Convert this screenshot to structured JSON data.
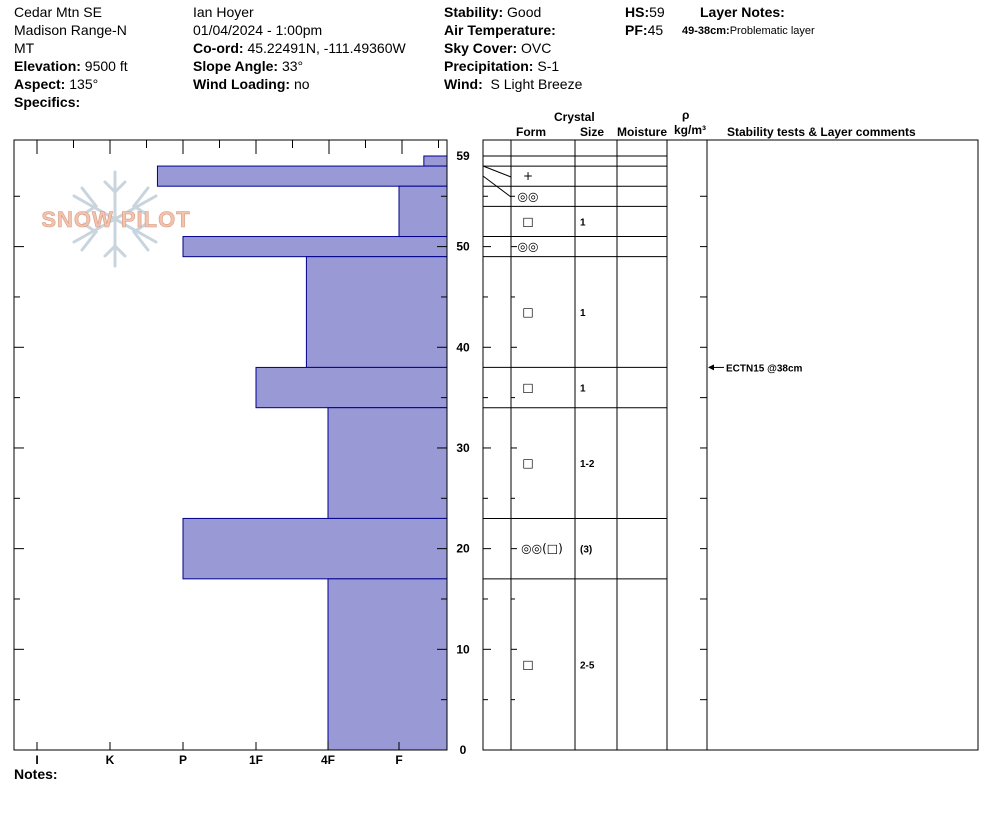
{
  "header": {
    "col1": {
      "location": "Cedar Mtn SE",
      "range": "Madison Range-N",
      "state": "MT",
      "elevation_label": "Elevation:",
      "elevation": "9500 ft",
      "aspect_label": "Aspect:",
      "aspect": "135°",
      "specifics_label": "Specifics:"
    },
    "col2": {
      "observer": "Ian Hoyer",
      "datetime": "01/04/2024 - 1:00pm",
      "coord_label": "Co-ord:",
      "coord": "45.22491N, -111.49360W",
      "slope_label": "Slope Angle:",
      "slope": "33°",
      "wind_loading_label": "Wind Loading:",
      "wind_loading": "no"
    },
    "col3": {
      "stability_label": "Stability:",
      "stability": "Good",
      "air_temp_label": "Air Temperature:",
      "sky_label": "Sky Cover:",
      "sky": "OVC",
      "precip_label": "Precipitation:",
      "precip": "S-1",
      "wind_label": "Wind:",
      "wind": "S Light Breeze"
    },
    "col4": {
      "hs_label": "HS:",
      "hs": "59",
      "pf_label": "PF:",
      "pf": "45",
      "layer_notes_label": "Layer Notes:",
      "layer_note_range": "49-38cm:",
      "layer_note_text": "Problematic layer"
    }
  },
  "logo_text": "SNOW PILOT",
  "notes_label": "Notes:",
  "columns": {
    "crystal": "Crystal",
    "form": "Form",
    "size": "Size",
    "moisture": "Moisture",
    "rho": "ρ",
    "density_unit": "kg/m³",
    "comments": "Stability tests & Layer comments"
  },
  "colors": {
    "bar_fill": "#9999d6",
    "bar_stroke": "#00008b",
    "logo": "#f2c4b0"
  },
  "chart_data": {
    "type": "bar",
    "orientation": "horizontal",
    "title": "",
    "xlabel": "",
    "ylabel": "",
    "hardness_scale": [
      "I",
      "K",
      "P",
      "1F",
      "4F",
      "F"
    ],
    "hardness_scale_note": "axis printed left-to-right as I, K, P, 1F, 4F, F; bar length measured from the right edge (F) toward I",
    "y_ticks": [
      0,
      10,
      20,
      30,
      40,
      50,
      59
    ],
    "ylim": [
      0,
      59
    ],
    "layers": [
      {
        "top": 59,
        "bottom": 58,
        "hardness_index": 5.35
      },
      {
        "top": 58,
        "bottom": 56,
        "hardness_index": 1.65
      },
      {
        "top": 56,
        "bottom": 51,
        "hardness_index": 5.0
      },
      {
        "top": 51,
        "bottom": 49,
        "hardness_index": 2.0
      },
      {
        "top": 49,
        "bottom": 38,
        "hardness_index": 3.7
      },
      {
        "top": 38,
        "bottom": 34,
        "hardness_index": 3.0
      },
      {
        "top": 34,
        "bottom": 23,
        "hardness_index": 4.0
      },
      {
        "top": 23,
        "bottom": 17,
        "hardness_index": 2.0
      },
      {
        "top": 17,
        "bottom": 0,
        "hardness_index": 4.0
      }
    ],
    "crystal_rows": [
      {
        "top": 59,
        "bottom": 58,
        "form": "",
        "size": ""
      },
      {
        "top": 58,
        "bottom": 56,
        "form": "+",
        "size": ""
      },
      {
        "top": 56,
        "bottom": 54,
        "form": "◎◎",
        "size": ""
      },
      {
        "top": 54,
        "bottom": 51,
        "form": "□",
        "size": "1"
      },
      {
        "top": 51,
        "bottom": 49,
        "form": "◎◎",
        "size": ""
      },
      {
        "top": 49,
        "bottom": 38,
        "form": "□",
        "size": "1"
      },
      {
        "top": 38,
        "bottom": 34,
        "form": "□",
        "size": "1"
      },
      {
        "top": 34,
        "bottom": 23,
        "form": "□",
        "size": "1-2"
      },
      {
        "top": 23,
        "bottom": 17,
        "form": "◎◎(□)",
        "size": "(3)"
      },
      {
        "top": 17,
        "bottom": 0,
        "form": "□",
        "size": "2-5"
      }
    ],
    "tests": [
      {
        "depth": 38,
        "label": "ECTN15 @38cm"
      }
    ]
  }
}
